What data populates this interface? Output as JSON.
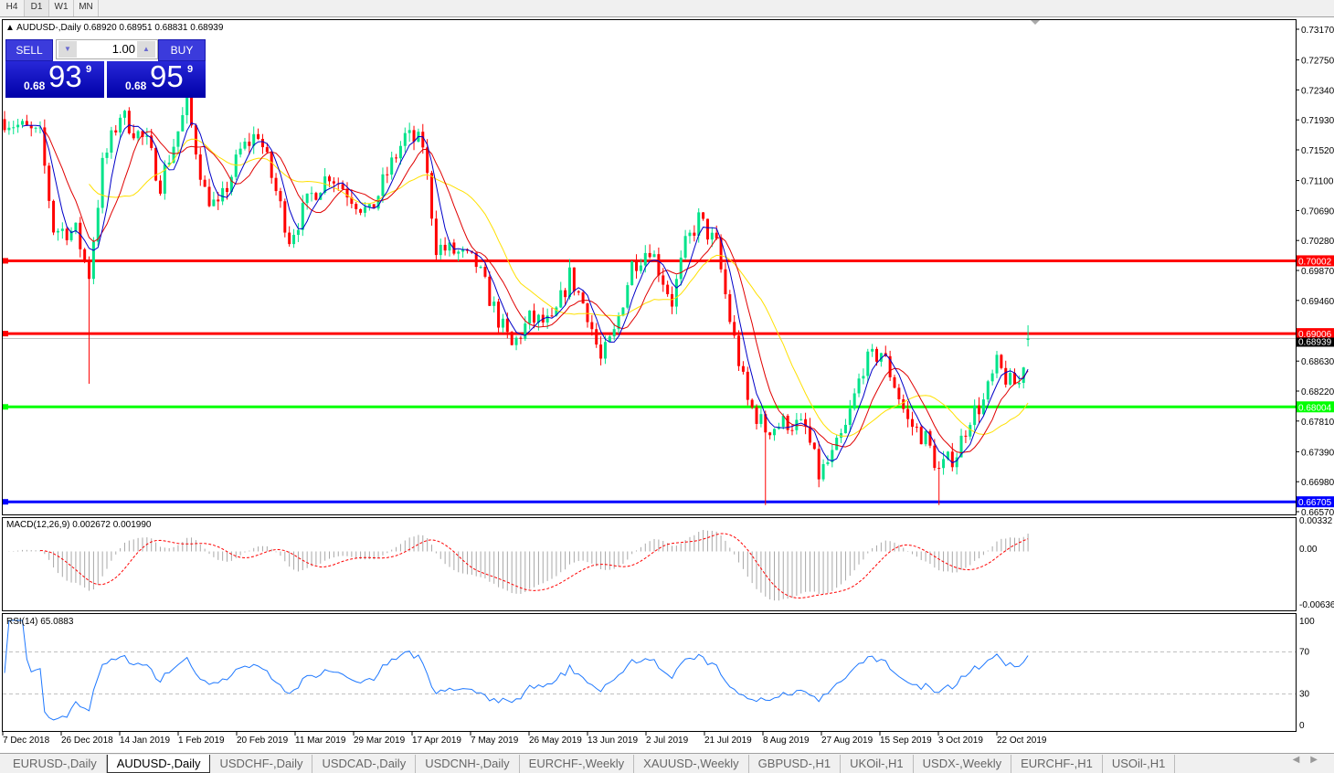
{
  "timeframes": [
    "H4",
    "D1",
    "W1",
    "MN"
  ],
  "active_timeframe": "D1",
  "chart_title": "AUDUSD-,Daily",
  "ohlc": "0.68920 0.68951 0.68831 0.68939",
  "trade_panel": {
    "sell_label": "SELL",
    "buy_label": "BUY",
    "lot": "1.00",
    "sell_price": {
      "prefix": "0.68",
      "big": "93",
      "sup": "9"
    },
    "buy_price": {
      "prefix": "0.68",
      "big": "95",
      "sup": "9"
    }
  },
  "price_axis": [
    "0.73170",
    "0.72750",
    "0.72340",
    "0.71930",
    "0.71520",
    "0.71100",
    "0.70690",
    "0.70280",
    "0.69870",
    "0.69460",
    "0.68630",
    "0.68220",
    "0.67810",
    "0.67390",
    "0.66980",
    "0.66570"
  ],
  "levels": [
    {
      "price": "0.70002",
      "color": "#ff0000"
    },
    {
      "price": "0.69006",
      "color": "#ff0000"
    },
    {
      "price": "0.68004",
      "color": "#00ff00"
    },
    {
      "price": "0.66705",
      "color": "#0000ff"
    }
  ],
  "bid_label": "0.68939",
  "colors": {
    "bull": "#00e38a",
    "bear": "#ff0000",
    "ma_fast": "#0000c8",
    "ma_mid": "#e00000",
    "ma_slow": "#ffe000",
    "macd_hist": "#a8a8a8",
    "macd_signal": "#ff0000",
    "rsi": "#1e78ff"
  },
  "close_path": [
    [
      0,
      0.7194
    ],
    [
      8,
      0.717
    ],
    [
      11,
      0.7044
    ],
    [
      16,
      0.704
    ],
    [
      19,
      0.6982
    ],
    [
      22,
      0.713
    ],
    [
      26,
      0.7201
    ],
    [
      32,
      0.716
    ],
    [
      35,
      0.7107
    ],
    [
      41,
      0.7213
    ],
    [
      45,
      0.7095
    ],
    [
      48,
      0.707
    ],
    [
      53,
      0.715
    ],
    [
      57,
      0.7176
    ],
    [
      61,
      0.7095
    ],
    [
      64,
      0.7032
    ],
    [
      69,
      0.709
    ],
    [
      73,
      0.712
    ],
    [
      77,
      0.7095
    ],
    [
      82,
      0.7063
    ],
    [
      86,
      0.712
    ],
    [
      90,
      0.717
    ],
    [
      94,
      0.716
    ],
    [
      97,
      0.702
    ],
    [
      102,
      0.701
    ],
    [
      106,
      0.6995
    ],
    [
      111,
      0.692
    ],
    [
      114,
      0.6882
    ],
    [
      118,
      0.692
    ],
    [
      123,
      0.6913
    ],
    [
      127,
      0.698
    ],
    [
      131,
      0.693
    ],
    [
      134,
      0.6863
    ],
    [
      137,
      0.69
    ],
    [
      141,
      0.6995
    ],
    [
      145,
      0.702
    ],
    [
      150,
      0.6945
    ],
    [
      153,
      0.702
    ],
    [
      156,
      0.7057
    ],
    [
      160,
      0.702
    ],
    [
      163,
      0.692
    ],
    [
      167,
      0.6807
    ],
    [
      171,
      0.677
    ],
    [
      176,
      0.678
    ],
    [
      180,
      0.677
    ],
    [
      183,
      0.6707
    ],
    [
      186,
      0.6732
    ],
    [
      189,
      0.677
    ],
    [
      193,
      0.6857
    ],
    [
      197,
      0.6876
    ],
    [
      200,
      0.6832
    ],
    [
      203,
      0.678
    ],
    [
      207,
      0.6757
    ],
    [
      210,
      0.6713
    ],
    [
      214,
      0.6738
    ],
    [
      217,
      0.6788
    ],
    [
      220,
      0.6807
    ],
    [
      223,
      0.6857
    ],
    [
      226,
      0.6832
    ],
    [
      228,
      0.6832
    ],
    [
      230,
      0.68939
    ]
  ],
  "macd": {
    "label": "MACD(12,26,9) 0.002672 0.001990",
    "axis": [
      "0.00332",
      "0.00",
      "-0.006361"
    ]
  },
  "rsi": {
    "label": "RSI(14) 65.0883",
    "axis": [
      "100",
      "70",
      "30",
      "0"
    ]
  },
  "dates": [
    "7 Dec 2018",
    "26 Dec 2018",
    "14 Jan 2019",
    "1 Feb 2019",
    "20 Feb 2019",
    "11 Mar 2019",
    "29 Mar 2019",
    "17 Apr 2019",
    "7 May 2019",
    "26 May 2019",
    "13 Jun 2019",
    "2 Jul 2019",
    "21 Jul 2019",
    "8 Aug 2019",
    "27 Aug 2019",
    "15 Sep 2019",
    "3 Oct 2019",
    "22 Oct 2019"
  ],
  "symbol_tabs": [
    "EURUSD-,Daily",
    "AUDUSD-,Daily",
    "USDCHF-,Daily",
    "USDCAD-,Daily",
    "USDCNH-,Daily",
    "EURCHF-,Weekly",
    "XAUUSD-,Weekly",
    "GBPUSD-,H1",
    "UKOil-,H1",
    "USDX-,Weekly",
    "EURCHF-,H1",
    "USOil-,H1"
  ],
  "active_symbol_tab": "AUDUSD-,Daily"
}
